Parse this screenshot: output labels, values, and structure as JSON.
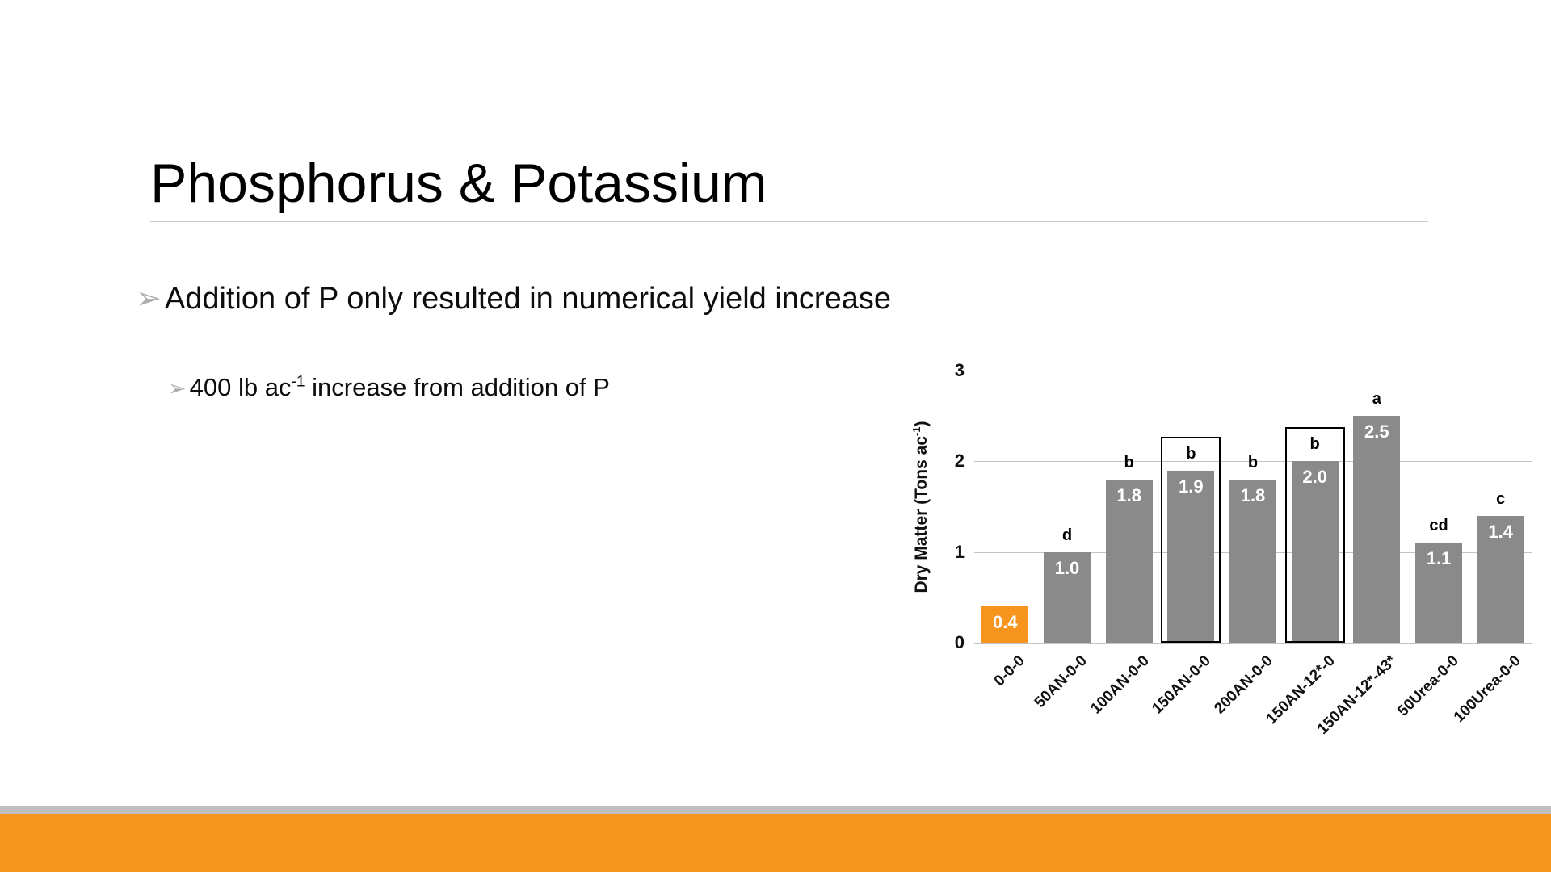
{
  "slide": {
    "title": "Phosphorus & Potassium",
    "bullet_glyph": "➢",
    "bullet1": "Addition of P only resulted in numerical yield increase",
    "sub_bullet": {
      "prefix": "400 lb ac",
      "sup": "-1",
      "suffix": " increase from addition of P"
    }
  },
  "chart_data": {
    "type": "bar",
    "title": "",
    "xlabel": "",
    "ylabel": "Dry Matter (Tons ac-1)",
    "ylabel_parts": {
      "prefix": "Dry Matter (Tons ac",
      "sup": "-1",
      "suffix": ")"
    },
    "ylim": [
      0,
      3
    ],
    "yticks": [
      0,
      1,
      2,
      3
    ],
    "grid": true,
    "legend": "none",
    "categories": [
      "0-0-0",
      "50AN-0-0",
      "100AN-0-0",
      "150AN-0-0",
      "200AN-0-0",
      "150AN-12*-0",
      "150AN-12*-43*",
      "50Urea-0-0",
      "100Urea-0-0"
    ],
    "values": [
      0.4,
      1.0,
      1.8,
      1.9,
      1.8,
      2.0,
      2.5,
      1.1,
      1.4
    ],
    "value_labels": [
      "0.4",
      "1.0",
      "1.8",
      "1.9",
      "1.8",
      "2.0",
      "2.5",
      "1.1",
      "1.4"
    ],
    "significance_letters": [
      "",
      "d",
      "b",
      "b",
      "b",
      "b",
      "a",
      "cd",
      "c"
    ],
    "highlighted_bars": [
      3,
      5
    ],
    "bar_color_default": "#8a8a8a",
    "bar_color_first": "#f7941e"
  },
  "colors": {
    "accent_orange": "#f7941e",
    "footer_gray": "#bfbfbf",
    "gridline": "#c3c3c3"
  }
}
